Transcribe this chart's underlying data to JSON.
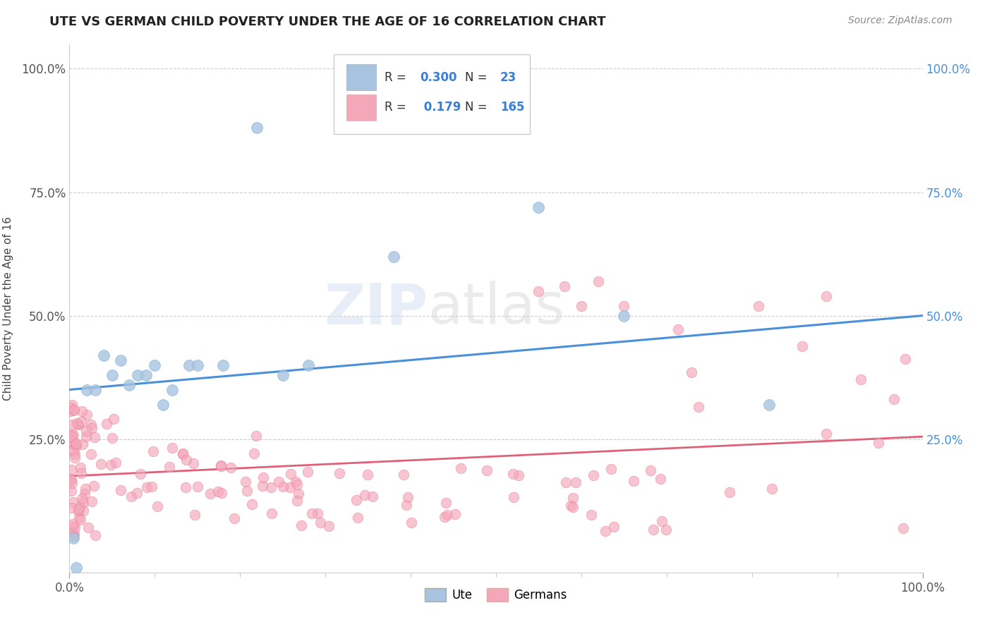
{
  "title": "UTE VS GERMAN CHILD POVERTY UNDER THE AGE OF 16 CORRELATION CHART",
  "source": "Source: ZipAtlas.com",
  "ylabel": "Child Poverty Under the Age of 16",
  "xlim": [
    0.0,
    1.0
  ],
  "ylim": [
    -0.02,
    1.05
  ],
  "background_color": "#ffffff",
  "grid_color": "#c8c8c8",
  "watermark_zip": "ZIP",
  "watermark_atlas": "atlas",
  "color_ute": "#a8c4e0",
  "color_ute_edge": "#7aafd4",
  "color_german": "#f4a7b9",
  "color_german_edge": "#e87a9a",
  "color_line_ute": "#4a90d9",
  "color_line_german": "#e0607a",
  "title_fontsize": 13,
  "source_fontsize": 10,
  "ute_x": [
    0.005,
    0.008,
    0.02,
    0.03,
    0.04,
    0.05,
    0.06,
    0.07,
    0.08,
    0.09,
    0.1,
    0.11,
    0.12,
    0.14,
    0.15,
    0.18,
    0.22,
    0.28,
    0.25,
    0.38,
    0.55,
    0.65,
    0.82
  ],
  "ute_y": [
    0.05,
    -0.01,
    0.35,
    0.35,
    0.42,
    0.38,
    0.41,
    0.36,
    0.38,
    0.38,
    0.4,
    0.32,
    0.35,
    0.4,
    0.4,
    0.4,
    0.88,
    0.4,
    0.38,
    0.62,
    0.72,
    0.5,
    0.32
  ],
  "line_ute_x0": 0.0,
  "line_ute_y0": 0.35,
  "line_ute_x1": 1.0,
  "line_ute_y1": 0.5,
  "line_ger_x0": 0.0,
  "line_ger_y0": 0.175,
  "line_ger_x1": 1.0,
  "line_ger_y1": 0.255
}
